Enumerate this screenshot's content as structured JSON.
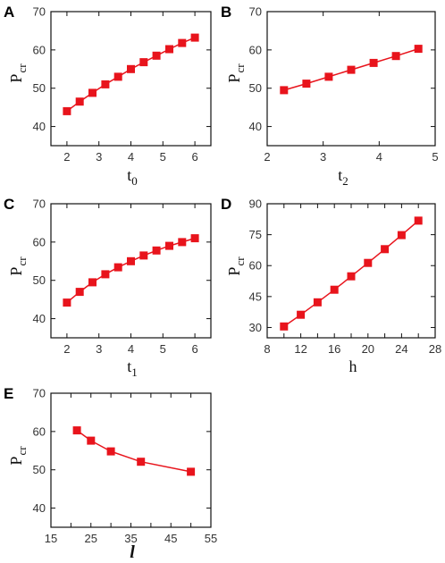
{
  "chart_data": [
    {
      "panel": "A",
      "type": "line",
      "marker": "square",
      "color": "#e8141c",
      "xlabel": "t",
      "xlabel_sub": "0",
      "ylabel": "P",
      "ylabel_sub": "cr",
      "xlim": [
        1.5,
        6.5
      ],
      "ylim": [
        35,
        70
      ],
      "xticks": [
        2,
        3,
        4,
        5,
        6
      ],
      "yticks": [
        40,
        50,
        60,
        70
      ],
      "x": [
        2.0,
        2.4,
        2.8,
        3.2,
        3.6,
        4.0,
        4.4,
        4.8,
        5.2,
        5.6,
        6.0
      ],
      "y": [
        44.0,
        46.5,
        48.8,
        51.0,
        53.0,
        55.0,
        56.8,
        58.5,
        60.2,
        61.8,
        63.2
      ]
    },
    {
      "panel": "B",
      "type": "line",
      "marker": "square",
      "color": "#e8141c",
      "xlabel": "t",
      "xlabel_sub": "2",
      "ylabel": "P",
      "ylabel_sub": "cr",
      "xlim": [
        2,
        5
      ],
      "ylim": [
        35,
        70
      ],
      "xticks": [
        2,
        3,
        4,
        5
      ],
      "yticks": [
        40,
        50,
        60,
        70
      ],
      "x": [
        2.3,
        2.7,
        3.1,
        3.5,
        3.9,
        4.3,
        4.7
      ],
      "y": [
        49.5,
        51.2,
        53.0,
        54.8,
        56.6,
        58.4,
        60.3
      ]
    },
    {
      "panel": "C",
      "type": "line",
      "marker": "square",
      "color": "#e8141c",
      "xlabel": "t",
      "xlabel_sub": "1",
      "ylabel": "P",
      "ylabel_sub": "cr",
      "xlim": [
        1.5,
        6.5
      ],
      "ylim": [
        35,
        70
      ],
      "xticks": [
        2,
        3,
        4,
        5,
        6
      ],
      "yticks": [
        40,
        50,
        60,
        70
      ],
      "x": [
        2.0,
        2.4,
        2.8,
        3.2,
        3.6,
        4.0,
        4.4,
        4.8,
        5.2,
        5.6,
        6.0
      ],
      "y": [
        44.2,
        47.0,
        49.5,
        51.6,
        53.4,
        55.0,
        56.5,
        57.8,
        59.0,
        60.0,
        61.0
      ]
    },
    {
      "panel": "D",
      "type": "line",
      "marker": "square",
      "color": "#e8141c",
      "xlabel": "h",
      "xlabel_sub": "",
      "ylabel": "P",
      "ylabel_sub": "cr",
      "xlim": [
        8,
        28
      ],
      "ylim": [
        25,
        90
      ],
      "xticks": [
        8,
        12,
        16,
        20,
        24,
        28
      ],
      "xtick_labels": [
        "8",
        "12",
        "16",
        "20",
        "24",
        "28"
      ],
      "xminor": [
        10,
        14,
        18,
        22,
        26
      ],
      "xminor_labels": [
        "10",
        "14",
        "18",
        "22",
        "26"
      ],
      "yticks": [
        30,
        45,
        60,
        75,
        90
      ],
      "x": [
        10,
        12,
        14,
        16,
        18,
        20,
        22,
        24,
        26
      ],
      "y": [
        30.5,
        36.2,
        42.2,
        48.3,
        54.8,
        61.3,
        68.0,
        74.8,
        81.8
      ]
    },
    {
      "panel": "E",
      "type": "line",
      "marker": "square",
      "color": "#e8141c",
      "xlabel": "l",
      "xlabel_sub": "",
      "ylabel": "P",
      "ylabel_sub": "cr",
      "xlim": [
        15,
        55
      ],
      "ylim": [
        35,
        70
      ],
      "xticks": [
        15,
        25,
        35,
        45,
        55
      ],
      "xminor": [
        20,
        30,
        40,
        50
      ],
      "xminor_labels": [
        "20",
        "30",
        "40",
        "50"
      ],
      "yticks": [
        40,
        50,
        60,
        70
      ],
      "x": [
        21.5,
        25.0,
        30.0,
        37.5,
        50.0
      ],
      "y": [
        60.3,
        57.6,
        54.8,
        52.1,
        49.5
      ]
    }
  ]
}
